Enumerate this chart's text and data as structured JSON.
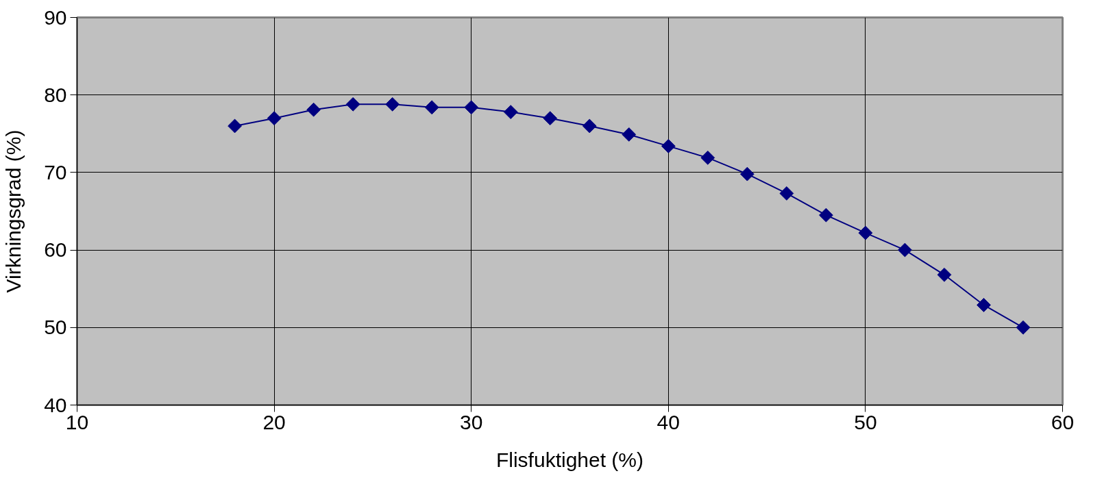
{
  "chart_data": {
    "type": "line",
    "xlabel": "Flisfuktighet (%)",
    "ylabel": "Virkningsgrad (%)",
    "x": [
      18,
      20,
      22,
      24,
      26,
      28,
      30,
      32,
      34,
      36,
      38,
      40,
      42,
      44,
      46,
      48,
      50,
      52,
      54,
      56,
      58
    ],
    "series": [
      {
        "color": "#000080",
        "values": [
          76.0,
          77.0,
          78.1,
          78.8,
          78.8,
          78.4,
          78.4,
          77.8,
          77.0,
          76.0,
          74.9,
          73.4,
          71.9,
          69.8,
          67.3,
          64.5,
          62.2,
          60.0,
          56.8,
          52.9,
          50.0
        ]
      }
    ],
    "xlim": [
      10,
      60
    ],
    "ylim": [
      40,
      90
    ],
    "xticks": [
      10,
      20,
      30,
      40,
      50,
      60
    ],
    "yticks": [
      40,
      50,
      60,
      70,
      80,
      90
    ],
    "grid": true,
    "marker": "diamond",
    "line_style": "solid"
  }
}
